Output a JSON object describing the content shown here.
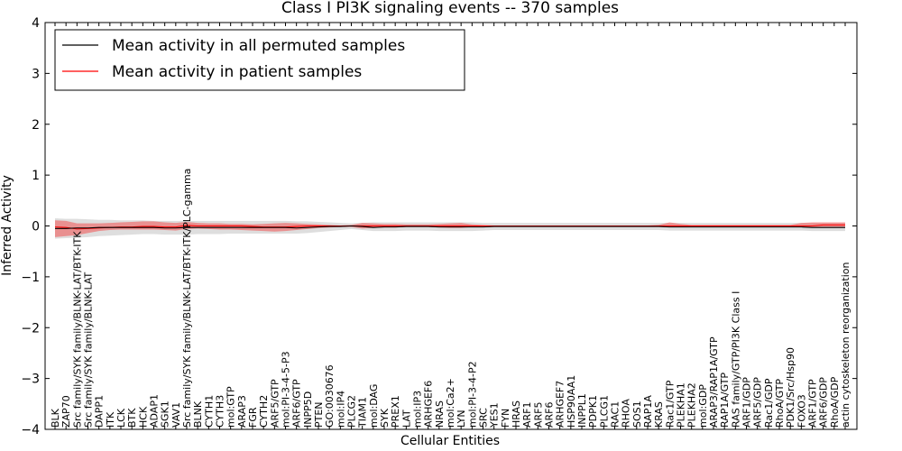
{
  "chart_data": {
    "type": "line",
    "title": "Class I PI3K signaling events -- 370 samples",
    "xlabel": "Cellular Entities",
    "ylabel": "Inferred Activity",
    "ylim": [
      -4,
      4
    ],
    "yticks": [
      -4,
      -3,
      -2,
      -1,
      0,
      1,
      2,
      3,
      4
    ],
    "ytick_labels": [
      "−4",
      "−3",
      "−2",
      "−1",
      "0",
      "1",
      "2",
      "3",
      "4"
    ],
    "grid": false,
    "legend_location": "top-left",
    "categories": [
      "BLK",
      "ZAP70",
      "Src family/SYK family/BLNK-LAT/BTK-ITK",
      "Src family/SYK family/BLNK-LAT",
      "DAPP1",
      "ITK",
      "LCK",
      "BTK",
      "HCK",
      "ADAP1",
      "SGK1",
      "VAV1",
      "Src family/SYK family/BLNK-LAT/BTK-ITK/PLC-gamma",
      "BLNK",
      "CYTH1",
      "CYTH3",
      "mol:GTP",
      "ARAP3",
      "FGR",
      "CYTH2",
      "ARF5/GTP",
      "mol:PI-3-4-5-P3",
      "ARF6/GTP",
      "INPP5D",
      "PTEN",
      "GO:0030676",
      "mol:IP4",
      "PLCG2",
      "TIAM1",
      "mol:DAG",
      "SYK",
      "PREX1",
      "LAT",
      "mol:IP3",
      "ARHGEF6",
      "NRAS",
      "mol:Ca2+",
      "LYN",
      "mol:PI-3-4-P2",
      "SRC",
      "YES1",
      "FYN",
      "HRAS",
      "ARF1",
      "ARF5",
      "ARF6",
      "ARHGEF7",
      "HSP90AA1",
      "INPPL1",
      "PDPK1",
      "PLCG1",
      "RAC1",
      "RHOA",
      "SOS1",
      "RAP1A",
      "KRAS",
      "Rac1/GTP",
      "PLEKHA1",
      "PLEKHA2",
      "mol:GDP",
      "ARAP3/RAP1A/GTP",
      "RAP1A/GTP",
      "RAS family/GTP/PI3K Class I",
      "ARF1/GDP",
      "ARF5/GDP",
      "Rac1/GDP",
      "RhoA/GTP",
      "PDK1/Src/Hsp90",
      "FOXO3",
      "ARF1/GTP",
      "ARF6/GDP",
      "RhoA/GDP",
      "actin cytoskeleton reorganization"
    ],
    "series": [
      {
        "name": "Mean activity in all permuted samples",
        "color": "#000000",
        "values": [
          -0.05,
          -0.05,
          -0.04,
          -0.04,
          -0.03,
          -0.03,
          -0.03,
          -0.03,
          -0.03,
          -0.03,
          -0.04,
          -0.04,
          -0.03,
          -0.03,
          -0.03,
          -0.03,
          -0.03,
          -0.03,
          -0.03,
          -0.03,
          -0.03,
          -0.03,
          -0.04,
          -0.03,
          -0.02,
          -0.01,
          -0.01,
          0.0,
          -0.01,
          -0.03,
          -0.02,
          -0.02,
          -0.01,
          -0.01,
          -0.01,
          -0.02,
          -0.02,
          -0.02,
          -0.02,
          -0.02,
          -0.01,
          -0.01,
          -0.01,
          -0.01,
          -0.01,
          -0.01,
          -0.01,
          -0.01,
          -0.01,
          -0.01,
          -0.01,
          -0.01,
          -0.01,
          -0.01,
          -0.01,
          -0.01,
          -0.02,
          -0.02,
          -0.02,
          -0.02,
          -0.02,
          -0.02,
          -0.02,
          -0.02,
          -0.02,
          -0.02,
          -0.02,
          -0.02,
          -0.02,
          -0.03,
          -0.03,
          -0.03,
          -0.03
        ],
        "band_lower": [
          -0.25,
          -0.24,
          -0.23,
          -0.22,
          -0.2,
          -0.19,
          -0.18,
          -0.17,
          -0.16,
          -0.16,
          -0.17,
          -0.17,
          -0.17,
          -0.16,
          -0.16,
          -0.16,
          -0.15,
          -0.15,
          -0.15,
          -0.15,
          -0.15,
          -0.15,
          -0.15,
          -0.14,
          -0.12,
          -0.1,
          -0.08,
          -0.06,
          -0.08,
          -0.1,
          -0.1,
          -0.1,
          -0.09,
          -0.09,
          -0.09,
          -0.1,
          -0.1,
          -0.1,
          -0.1,
          -0.09,
          -0.08,
          -0.08,
          -0.08,
          -0.08,
          -0.08,
          -0.08,
          -0.08,
          -0.08,
          -0.08,
          -0.08,
          -0.08,
          -0.08,
          -0.08,
          -0.08,
          -0.08,
          -0.08,
          -0.09,
          -0.09,
          -0.09,
          -0.09,
          -0.09,
          -0.09,
          -0.09,
          -0.09,
          -0.09,
          -0.09,
          -0.09,
          -0.09,
          -0.09,
          -0.1,
          -0.1,
          -0.1,
          -0.1
        ],
        "band_upper": [
          0.15,
          0.14,
          0.14,
          0.13,
          0.12,
          0.12,
          0.11,
          0.11,
          0.11,
          0.1,
          0.1,
          0.1,
          0.1,
          0.1,
          0.1,
          0.1,
          0.1,
          0.1,
          0.1,
          0.1,
          0.1,
          0.1,
          0.09,
          0.09,
          0.08,
          0.07,
          0.06,
          0.05,
          0.06,
          0.07,
          0.07,
          0.07,
          0.07,
          0.07,
          0.07,
          0.07,
          0.07,
          0.07,
          0.07,
          0.06,
          0.06,
          0.06,
          0.06,
          0.06,
          0.06,
          0.06,
          0.06,
          0.06,
          0.06,
          0.06,
          0.06,
          0.06,
          0.06,
          0.06,
          0.06,
          0.06,
          0.06,
          0.06,
          0.06,
          0.06,
          0.06,
          0.06,
          0.06,
          0.06,
          0.06,
          0.06,
          0.06,
          0.06,
          0.06,
          0.06,
          0.06,
          0.06,
          0.06
        ]
      },
      {
        "name": "Mean activity in patient samples",
        "color": "#ff0000",
        "values": [
          -0.02,
          -0.03,
          -0.06,
          -0.05,
          -0.04,
          -0.03,
          -0.02,
          -0.02,
          -0.01,
          -0.01,
          -0.02,
          -0.02,
          0.01,
          0.0,
          0.0,
          0.0,
          0.0,
          0.0,
          -0.01,
          -0.02,
          -0.02,
          -0.02,
          -0.01,
          0.0,
          0.0,
          0.0,
          0.0,
          0.0,
          0.0,
          0.0,
          0.0,
          0.0,
          0.0,
          0.0,
          0.0,
          0.0,
          0.0,
          0.0,
          0.0,
          0.0,
          0.0,
          0.0,
          0.0,
          0.0,
          0.0,
          0.0,
          0.0,
          0.0,
          0.0,
          0.0,
          0.0,
          0.0,
          0.0,
          0.0,
          0.0,
          0.0,
          0.0,
          0.0,
          0.0,
          0.0,
          0.0,
          0.0,
          0.0,
          0.0,
          0.0,
          0.0,
          0.0,
          0.0,
          0.0,
          0.0,
          0.02,
          0.02,
          0.02
        ],
        "band_lower": [
          -0.22,
          -0.2,
          -0.18,
          -0.14,
          -0.1,
          -0.08,
          -0.07,
          -0.07,
          -0.07,
          -0.07,
          -0.08,
          -0.09,
          -0.06,
          -0.05,
          -0.06,
          -0.07,
          -0.07,
          -0.08,
          -0.09,
          -0.1,
          -0.11,
          -0.1,
          -0.08,
          -0.06,
          -0.04,
          -0.03,
          -0.02,
          -0.02,
          -0.05,
          -0.04,
          -0.03,
          -0.03,
          -0.02,
          -0.02,
          -0.02,
          -0.03,
          -0.04,
          -0.04,
          -0.02,
          -0.02,
          -0.01,
          -0.01,
          -0.01,
          -0.01,
          -0.01,
          -0.01,
          -0.01,
          -0.01,
          -0.01,
          -0.01,
          -0.01,
          -0.01,
          -0.01,
          -0.01,
          -0.01,
          -0.01,
          -0.02,
          -0.02,
          -0.01,
          -0.01,
          -0.01,
          -0.01,
          -0.01,
          -0.01,
          -0.01,
          -0.01,
          -0.01,
          -0.01,
          -0.02,
          -0.02,
          -0.02,
          -0.02,
          -0.02
        ],
        "band_upper": [
          0.11,
          0.1,
          0.05,
          0.05,
          0.05,
          0.06,
          0.07,
          0.08,
          0.09,
          0.09,
          0.07,
          0.06,
          0.08,
          0.06,
          0.05,
          0.05,
          0.04,
          0.04,
          0.03,
          0.04,
          0.05,
          0.06,
          0.05,
          0.04,
          0.03,
          0.02,
          0.01,
          0.02,
          0.06,
          0.05,
          0.04,
          0.04,
          0.03,
          0.03,
          0.03,
          0.04,
          0.05,
          0.06,
          0.03,
          0.02,
          0.01,
          0.01,
          0.01,
          0.01,
          0.01,
          0.01,
          0.01,
          0.01,
          0.01,
          0.01,
          0.01,
          0.01,
          0.01,
          0.01,
          0.01,
          0.02,
          0.07,
          0.04,
          0.02,
          0.02,
          0.02,
          0.02,
          0.02,
          0.02,
          0.02,
          0.02,
          0.02,
          0.02,
          0.06,
          0.07,
          0.07,
          0.07,
          0.07
        ]
      }
    ]
  }
}
